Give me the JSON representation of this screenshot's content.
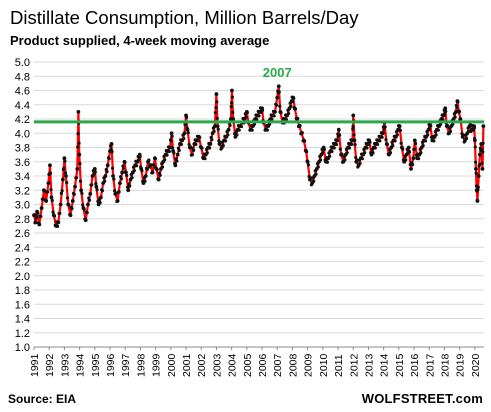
{
  "chart_data": {
    "type": "line",
    "title": "Distillate Consumption,  Million Barrels/Day",
    "subtitle": "Product supplied, 4-week moving average",
    "source": "Source: EIA",
    "brand": "WOLFSTREET.com",
    "annotation": {
      "label": "2007",
      "x": 2007.0,
      "y": 4.66,
      "color": "#2aa84a"
    },
    "reference_line": {
      "y": 4.16,
      "color": "#2aa84a"
    },
    "ylim": [
      1.0,
      5.0
    ],
    "yticks": [
      "1.0",
      "1.2",
      "1.4",
      "1.6",
      "1.8",
      "2.0",
      "2.2",
      "2.4",
      "2.6",
      "2.8",
      "3.0",
      "3.2",
      "3.4",
      "3.6",
      "3.8",
      "4.0",
      "4.2",
      "4.4",
      "4.6",
      "4.8",
      "5.0"
    ],
    "xlim": [
      1991,
      2020.6
    ],
    "xticks": [
      "1991",
      "1992",
      "1993",
      "1994",
      "1995",
      "1996",
      "1997",
      "1998",
      "1999",
      "2000",
      "2001",
      "2002",
      "2003",
      "2004",
      "2005",
      "2006",
      "2007",
      "2008",
      "2009",
      "2010",
      "2011",
      "2012",
      "2013",
      "2014",
      "2015",
      "2016",
      "2017",
      "2018",
      "2019",
      "2020"
    ],
    "grid": true,
    "series": [
      {
        "line_color": "#ff0000",
        "marker_color": "#111111",
        "points": [
          [
            1991.0,
            2.85
          ],
          [
            1991.1,
            2.75
          ],
          [
            1991.2,
            2.9
          ],
          [
            1991.35,
            2.72
          ],
          [
            1991.5,
            2.95
          ],
          [
            1991.65,
            3.2
          ],
          [
            1991.8,
            3.05
          ],
          [
            1991.95,
            3.3
          ],
          [
            1992.05,
            3.55
          ],
          [
            1992.15,
            3.1
          ],
          [
            1992.3,
            2.85
          ],
          [
            1992.45,
            2.7
          ],
          [
            1992.6,
            2.75
          ],
          [
            1992.75,
            3.0
          ],
          [
            1992.9,
            3.35
          ],
          [
            1993.0,
            3.65
          ],
          [
            1993.1,
            3.4
          ],
          [
            1993.25,
            3.0
          ],
          [
            1993.4,
            2.85
          ],
          [
            1993.55,
            3.05
          ],
          [
            1993.7,
            3.25
          ],
          [
            1993.85,
            3.5
          ],
          [
            1993.92,
            4.3
          ],
          [
            1993.98,
            3.7
          ],
          [
            1994.1,
            3.2
          ],
          [
            1994.25,
            2.95
          ],
          [
            1994.4,
            2.78
          ],
          [
            1994.55,
            3.0
          ],
          [
            1994.7,
            3.15
          ],
          [
            1994.85,
            3.4
          ],
          [
            1995.0,
            3.5
          ],
          [
            1995.1,
            3.25
          ],
          [
            1995.25,
            3.0
          ],
          [
            1995.4,
            3.1
          ],
          [
            1995.55,
            3.3
          ],
          [
            1995.7,
            3.4
          ],
          [
            1995.85,
            3.55
          ],
          [
            1996.0,
            3.75
          ],
          [
            1996.1,
            3.85
          ],
          [
            1996.2,
            3.4
          ],
          [
            1996.35,
            3.15
          ],
          [
            1996.5,
            3.05
          ],
          [
            1996.65,
            3.3
          ],
          [
            1996.8,
            3.45
          ],
          [
            1996.95,
            3.6
          ],
          [
            1997.05,
            3.45
          ],
          [
            1997.2,
            3.2
          ],
          [
            1997.35,
            3.35
          ],
          [
            1997.5,
            3.45
          ],
          [
            1997.65,
            3.55
          ],
          [
            1997.8,
            3.6
          ],
          [
            1997.95,
            3.7
          ],
          [
            1998.05,
            3.5
          ],
          [
            1998.2,
            3.3
          ],
          [
            1998.35,
            3.4
          ],
          [
            1998.5,
            3.6
          ],
          [
            1998.65,
            3.55
          ],
          [
            1998.8,
            3.45
          ],
          [
            1998.95,
            3.65
          ],
          [
            1999.05,
            3.5
          ],
          [
            1999.2,
            3.35
          ],
          [
            1999.35,
            3.5
          ],
          [
            1999.5,
            3.6
          ],
          [
            1999.65,
            3.7
          ],
          [
            1999.8,
            3.75
          ],
          [
            1999.95,
            3.8
          ],
          [
            2000.05,
            4.0
          ],
          [
            2000.15,
            3.75
          ],
          [
            2000.3,
            3.55
          ],
          [
            2000.45,
            3.7
          ],
          [
            2000.6,
            3.85
          ],
          [
            2000.75,
            3.9
          ],
          [
            2000.9,
            4.0
          ],
          [
            2001.0,
            4.25
          ],
          [
            2001.1,
            4.05
          ],
          [
            2001.25,
            3.8
          ],
          [
            2001.4,
            3.7
          ],
          [
            2001.55,
            3.85
          ],
          [
            2001.7,
            3.9
          ],
          [
            2001.85,
            3.95
          ],
          [
            2002.0,
            3.8
          ],
          [
            2002.15,
            3.65
          ],
          [
            2002.3,
            3.7
          ],
          [
            2002.45,
            3.8
          ],
          [
            2002.6,
            3.85
          ],
          [
            2002.75,
            4.0
          ],
          [
            2002.9,
            4.1
          ],
          [
            2003.0,
            4.55
          ],
          [
            2003.08,
            4.1
          ],
          [
            2003.2,
            3.85
          ],
          [
            2003.35,
            3.8
          ],
          [
            2003.5,
            3.9
          ],
          [
            2003.65,
            3.95
          ],
          [
            2003.8,
            4.05
          ],
          [
            2003.95,
            4.2
          ],
          [
            2004.02,
            4.6
          ],
          [
            2004.1,
            4.2
          ],
          [
            2004.25,
            3.95
          ],
          [
            2004.4,
            4.05
          ],
          [
            2004.55,
            4.1
          ],
          [
            2004.7,
            4.15
          ],
          [
            2004.85,
            4.2
          ],
          [
            2005.0,
            4.3
          ],
          [
            2005.1,
            4.15
          ],
          [
            2005.25,
            4.05
          ],
          [
            2005.4,
            4.1
          ],
          [
            2005.55,
            4.2
          ],
          [
            2005.7,
            4.25
          ],
          [
            2005.85,
            4.3
          ],
          [
            2006.0,
            4.35
          ],
          [
            2006.1,
            4.15
          ],
          [
            2006.25,
            4.05
          ],
          [
            2006.4,
            4.1
          ],
          [
            2006.55,
            4.2
          ],
          [
            2006.7,
            4.25
          ],
          [
            2006.85,
            4.3
          ],
          [
            2007.0,
            4.5
          ],
          [
            2007.1,
            4.66
          ],
          [
            2007.2,
            4.3
          ],
          [
            2007.35,
            4.15
          ],
          [
            2007.5,
            4.2
          ],
          [
            2007.65,
            4.25
          ],
          [
            2007.8,
            4.35
          ],
          [
            2007.95,
            4.45
          ],
          [
            2008.05,
            4.5
          ],
          [
            2008.15,
            4.35
          ],
          [
            2008.3,
            4.2
          ],
          [
            2008.45,
            4.1
          ],
          [
            2008.6,
            4.0
          ],
          [
            2008.75,
            3.9
          ],
          [
            2008.9,
            3.75
          ],
          [
            2009.0,
            3.6
          ],
          [
            2009.15,
            3.35
          ],
          [
            2009.3,
            3.3
          ],
          [
            2009.45,
            3.4
          ],
          [
            2009.6,
            3.5
          ],
          [
            2009.75,
            3.6
          ],
          [
            2009.9,
            3.7
          ],
          [
            2010.05,
            3.8
          ],
          [
            2010.2,
            3.6
          ],
          [
            2010.35,
            3.65
          ],
          [
            2010.5,
            3.75
          ],
          [
            2010.65,
            3.8
          ],
          [
            2010.8,
            3.85
          ],
          [
            2010.95,
            3.9
          ],
          [
            2011.05,
            4.05
          ],
          [
            2011.2,
            3.7
          ],
          [
            2011.35,
            3.6
          ],
          [
            2011.5,
            3.7
          ],
          [
            2011.65,
            3.8
          ],
          [
            2011.8,
            3.85
          ],
          [
            2011.95,
            3.9
          ],
          [
            2012.0,
            4.25
          ],
          [
            2012.08,
            3.9
          ],
          [
            2012.2,
            3.6
          ],
          [
            2012.35,
            3.55
          ],
          [
            2012.5,
            3.65
          ],
          [
            2012.65,
            3.7
          ],
          [
            2012.8,
            3.8
          ],
          [
            2012.95,
            3.85
          ],
          [
            2013.05,
            3.9
          ],
          [
            2013.2,
            3.7
          ],
          [
            2013.35,
            3.8
          ],
          [
            2013.5,
            3.85
          ],
          [
            2013.65,
            3.9
          ],
          [
            2013.8,
            3.95
          ],
          [
            2013.95,
            4.0
          ],
          [
            2014.05,
            4.15
          ],
          [
            2014.2,
            3.85
          ],
          [
            2014.35,
            3.7
          ],
          [
            2014.5,
            3.8
          ],
          [
            2014.65,
            3.9
          ],
          [
            2014.8,
            3.95
          ],
          [
            2014.95,
            4.05
          ],
          [
            2015.05,
            4.1
          ],
          [
            2015.2,
            3.8
          ],
          [
            2015.35,
            3.6
          ],
          [
            2015.5,
            3.7
          ],
          [
            2015.65,
            3.8
          ],
          [
            2015.8,
            3.5
          ],
          [
            2015.95,
            3.65
          ],
          [
            2016.05,
            3.9
          ],
          [
            2016.2,
            3.65
          ],
          [
            2016.35,
            3.7
          ],
          [
            2016.5,
            3.8
          ],
          [
            2016.65,
            3.9
          ],
          [
            2016.8,
            3.95
          ],
          [
            2016.95,
            4.05
          ],
          [
            2017.05,
            4.15
          ],
          [
            2017.2,
            3.9
          ],
          [
            2017.35,
            3.95
          ],
          [
            2017.5,
            4.05
          ],
          [
            2017.65,
            4.1
          ],
          [
            2017.8,
            4.2
          ],
          [
            2017.95,
            4.25
          ],
          [
            2018.05,
            4.35
          ],
          [
            2018.15,
            4.1
          ],
          [
            2018.3,
            4.0
          ],
          [
            2018.45,
            4.1
          ],
          [
            2018.6,
            4.2
          ],
          [
            2018.75,
            4.3
          ],
          [
            2018.85,
            4.45
          ],
          [
            2018.95,
            4.3
          ],
          [
            2019.05,
            4.2
          ],
          [
            2019.2,
            3.95
          ],
          [
            2019.35,
            3.9
          ],
          [
            2019.5,
            4.0
          ],
          [
            2019.65,
            4.1
          ],
          [
            2019.8,
            4.05
          ],
          [
            2019.95,
            4.1
          ],
          [
            2020.0,
            3.9
          ],
          [
            2020.07,
            3.5
          ],
          [
            2020.12,
            3.2
          ],
          [
            2020.17,
            3.05
          ],
          [
            2020.25,
            3.4
          ],
          [
            2020.33,
            3.7
          ],
          [
            2020.42,
            3.85
          ],
          [
            2020.5,
            3.5
          ],
          [
            2020.56,
            4.1
          ]
        ]
      }
    ]
  }
}
